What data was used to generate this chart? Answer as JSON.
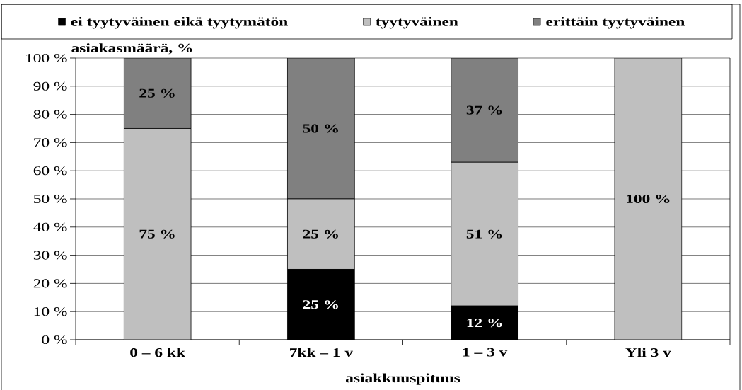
{
  "chart_data": {
    "type": "bar",
    "stacked": true,
    "xlabel": "asiakkuuspituus",
    "ylabel": "asiakasmäärä, %",
    "categories": [
      "0 – 6 kk",
      "7kk – 1 v",
      "1 – 3 v",
      "Yli 3 v"
    ],
    "series": [
      {
        "name": "ei tyytyväinen eikä tyytymätön",
        "color": "#000000",
        "values": [
          0,
          25,
          12,
          0
        ],
        "value_labels": [
          null,
          "25 %",
          "12 %",
          null
        ]
      },
      {
        "name": "tyytyväinen",
        "color": "#bfbfbf",
        "values": [
          75,
          25,
          51,
          100
        ],
        "value_labels": [
          "75 %",
          "25 %",
          "51 %",
          "100 %"
        ]
      },
      {
        "name": "erittäin tyytyväinen",
        "color": "#808080",
        "values": [
          25,
          50,
          37,
          0
        ],
        "value_labels": [
          "25 %",
          "50 %",
          "37 %",
          null
        ]
      }
    ],
    "ylim": [
      0,
      100
    ],
    "yticks": [
      {
        "value": 0,
        "label": "0 %"
      },
      {
        "value": 10,
        "label": "10 %"
      },
      {
        "value": 20,
        "label": "20 %"
      },
      {
        "value": 30,
        "label": "30 %"
      },
      {
        "value": 40,
        "label": "40 %"
      },
      {
        "value": 50,
        "label": "50 %"
      },
      {
        "value": 60,
        "label": "60 %"
      },
      {
        "value": 70,
        "label": "70 %"
      },
      {
        "value": 80,
        "label": "80 %"
      },
      {
        "value": 90,
        "label": "90 %"
      },
      {
        "value": 100,
        "label": "100 %"
      }
    ],
    "grid": "y",
    "legend": "top"
  }
}
